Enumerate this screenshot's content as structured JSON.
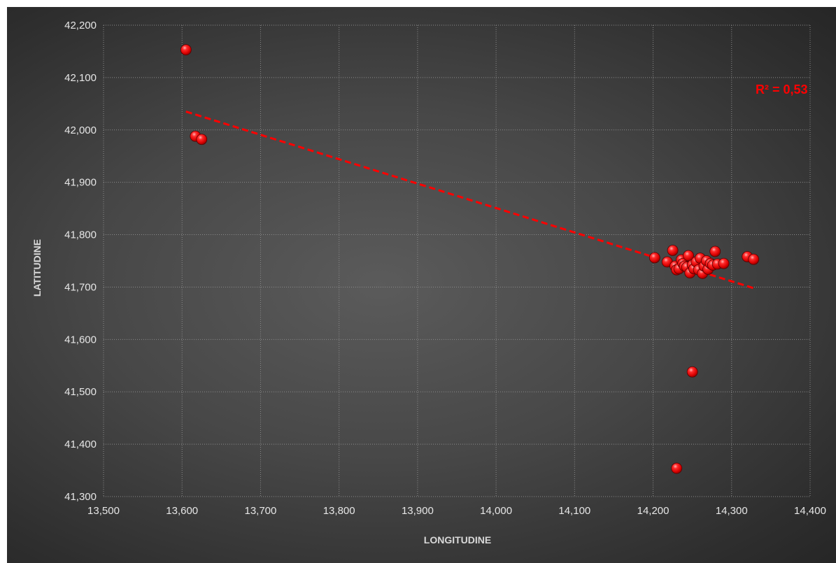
{
  "chart_data": {
    "type": "scatter",
    "title": "",
    "xlabel": "LONGITUDINE",
    "ylabel": "LATITUDINE",
    "xlim": [
      13.5,
      14.4
    ],
    "ylim": [
      41.3,
      42.2
    ],
    "x_ticks": [
      "13,500",
      "13,600",
      "13,700",
      "13,800",
      "13,900",
      "14,000",
      "14,100",
      "14,200",
      "14,300",
      "14,400"
    ],
    "y_ticks": [
      "41,300",
      "41,400",
      "41,500",
      "41,600",
      "41,700",
      "41,800",
      "41,900",
      "42,000",
      "42,100",
      "42,200"
    ],
    "grid": true,
    "marker_color": "#ff0000",
    "trendline": {
      "type": "linear",
      "style": "dashed",
      "color": "#ff0000",
      "x": [
        13.605,
        14.33
      ],
      "y": [
        42.035,
        41.697
      ],
      "label": "R² = 0,53"
    },
    "series": [
      {
        "points": [
          [
            13.605,
            42.153
          ],
          [
            13.617,
            41.988
          ],
          [
            13.625,
            41.982
          ],
          [
            14.202,
            41.756
          ],
          [
            14.218,
            41.748
          ],
          [
            14.225,
            41.77
          ],
          [
            14.228,
            41.74
          ],
          [
            14.23,
            41.733
          ],
          [
            14.233,
            41.735
          ],
          [
            14.236,
            41.752
          ],
          [
            14.238,
            41.745
          ],
          [
            14.24,
            41.74
          ],
          [
            14.243,
            41.738
          ],
          [
            14.245,
            41.76
          ],
          [
            14.247,
            41.727
          ],
          [
            14.25,
            41.742
          ],
          [
            14.252,
            41.735
          ],
          [
            14.255,
            41.748
          ],
          [
            14.258,
            41.733
          ],
          [
            14.26,
            41.755
          ],
          [
            14.263,
            41.726
          ],
          [
            14.265,
            41.74
          ],
          [
            14.268,
            41.75
          ],
          [
            14.27,
            41.734
          ],
          [
            14.273,
            41.745
          ],
          [
            14.276,
            41.742
          ],
          [
            14.279,
            41.768
          ],
          [
            14.282,
            41.744
          ],
          [
            14.29,
            41.745
          ],
          [
            14.32,
            41.758
          ],
          [
            14.328,
            41.753
          ],
          [
            14.25,
            41.538
          ],
          [
            14.23,
            41.354
          ]
        ]
      }
    ]
  }
}
